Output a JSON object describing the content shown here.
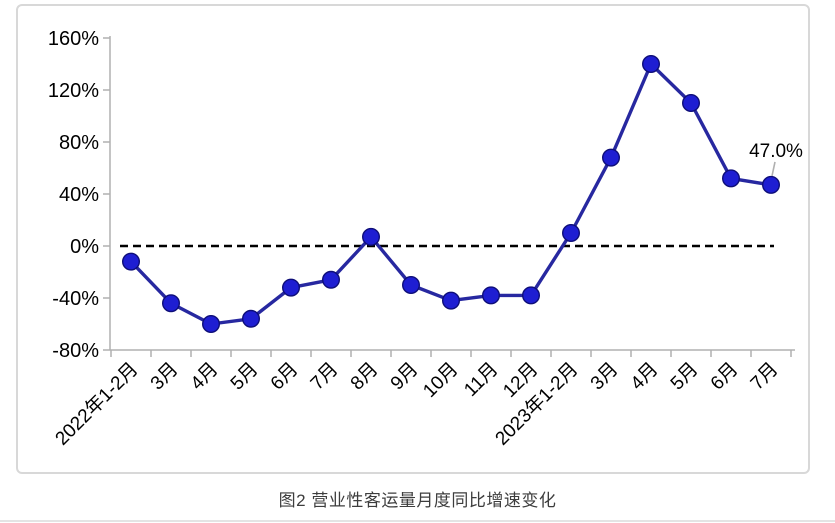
{
  "figure": {
    "caption": "图2  营业性客运量月度同比增速变化"
  },
  "chart_data": {
    "type": "line",
    "title": "图2  营业性客运量月度同比增速变化",
    "categories": [
      "2022年1-2月",
      "3月",
      "4月",
      "5月",
      "6月",
      "7月",
      "8月",
      "9月",
      "10月",
      "11月",
      "12月",
      "2023年1-2月",
      "3月",
      "4月",
      "5月",
      "6月",
      "7月"
    ],
    "series": [
      {
        "name": "营业性客运量月度同比增速",
        "values": [
          -12,
          -44,
          -60,
          -56,
          -32,
          -26,
          7,
          -30,
          -42,
          -38,
          -38,
          10,
          68,
          140,
          110,
          52,
          47
        ]
      }
    ],
    "xlabel": "",
    "ylabel": "",
    "ylim": [
      -80,
      160
    ],
    "ytick_step": 40,
    "yticks": [
      {
        "value": 160,
        "label": "160%"
      },
      {
        "value": 120,
        "label": "120%"
      },
      {
        "value": 80,
        "label": "80%"
      },
      {
        "value": 40,
        "label": "40%"
      },
      {
        "value": 0,
        "label": "0%"
      },
      {
        "value": -40,
        "label": "-40%"
      },
      {
        "value": -80,
        "label": "-80%"
      }
    ],
    "zero_line": {
      "value": 0,
      "style": "dashed",
      "color": "#000000"
    },
    "grid": false,
    "legend": "none",
    "annotation": {
      "text": "47.0%",
      "point_index": 16
    },
    "colors": {
      "line": "#2728a0",
      "marker_fill": "#1e1ed2",
      "marker_stroke": "#0e0e78",
      "axis": "#b0b0b0",
      "annotation_leader": "#b0b0b0",
      "text": "#000000"
    }
  }
}
